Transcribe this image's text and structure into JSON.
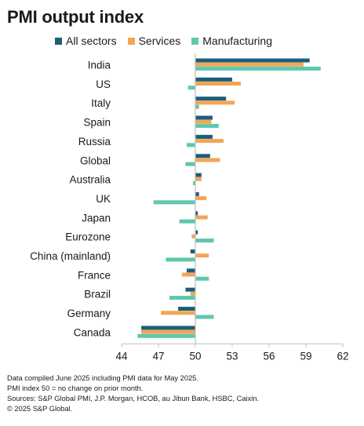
{
  "title": "PMI output index",
  "chart_data": {
    "type": "bar",
    "orientation": "horizontal",
    "categories": [
      "India",
      "US",
      "Italy",
      "Spain",
      "Russia",
      "Global",
      "Australia",
      "UK",
      "Japan",
      "Eurozone",
      "China (mainland)",
      "France",
      "Brazil",
      "Germany",
      "Canada"
    ],
    "series": [
      {
        "name": "All sectors",
        "color": "#1b5f7a",
        "values": [
          59.3,
          53.0,
          52.5,
          51.4,
          51.4,
          51.2,
          50.5,
          50.3,
          50.2,
          50.2,
          49.6,
          49.3,
          49.2,
          48.6,
          45.6
        ]
      },
      {
        "name": "Services",
        "color": "#f2a654",
        "values": [
          58.8,
          53.7,
          53.2,
          51.3,
          52.3,
          52.0,
          50.5,
          50.9,
          51.0,
          49.7,
          51.1,
          48.9,
          49.6,
          47.2,
          45.6
        ]
      },
      {
        "name": "Manufacturing",
        "color": "#5ec8ae",
        "values": [
          60.2,
          49.4,
          50.3,
          51.9,
          49.3,
          49.2,
          49.8,
          46.6,
          48.7,
          51.5,
          47.6,
          51.1,
          47.9,
          51.5,
          45.3
        ]
      }
    ],
    "x_ticks": [
      44,
      47,
      50,
      53,
      56,
      59,
      62
    ],
    "xlim": [
      44,
      62
    ],
    "baseline": 50,
    "legend_position": "top",
    "grid": false
  },
  "notes": [
    "Data compiled June 2025 including PMI data for May 2025.",
    "PMI index 50 = no change on prior month.",
    "Sources: S&P Global PMI, J.P. Morgan, HCOB, au Jibun Bank, HSBC, Caixin.",
    "© 2025 S&P Global."
  ]
}
